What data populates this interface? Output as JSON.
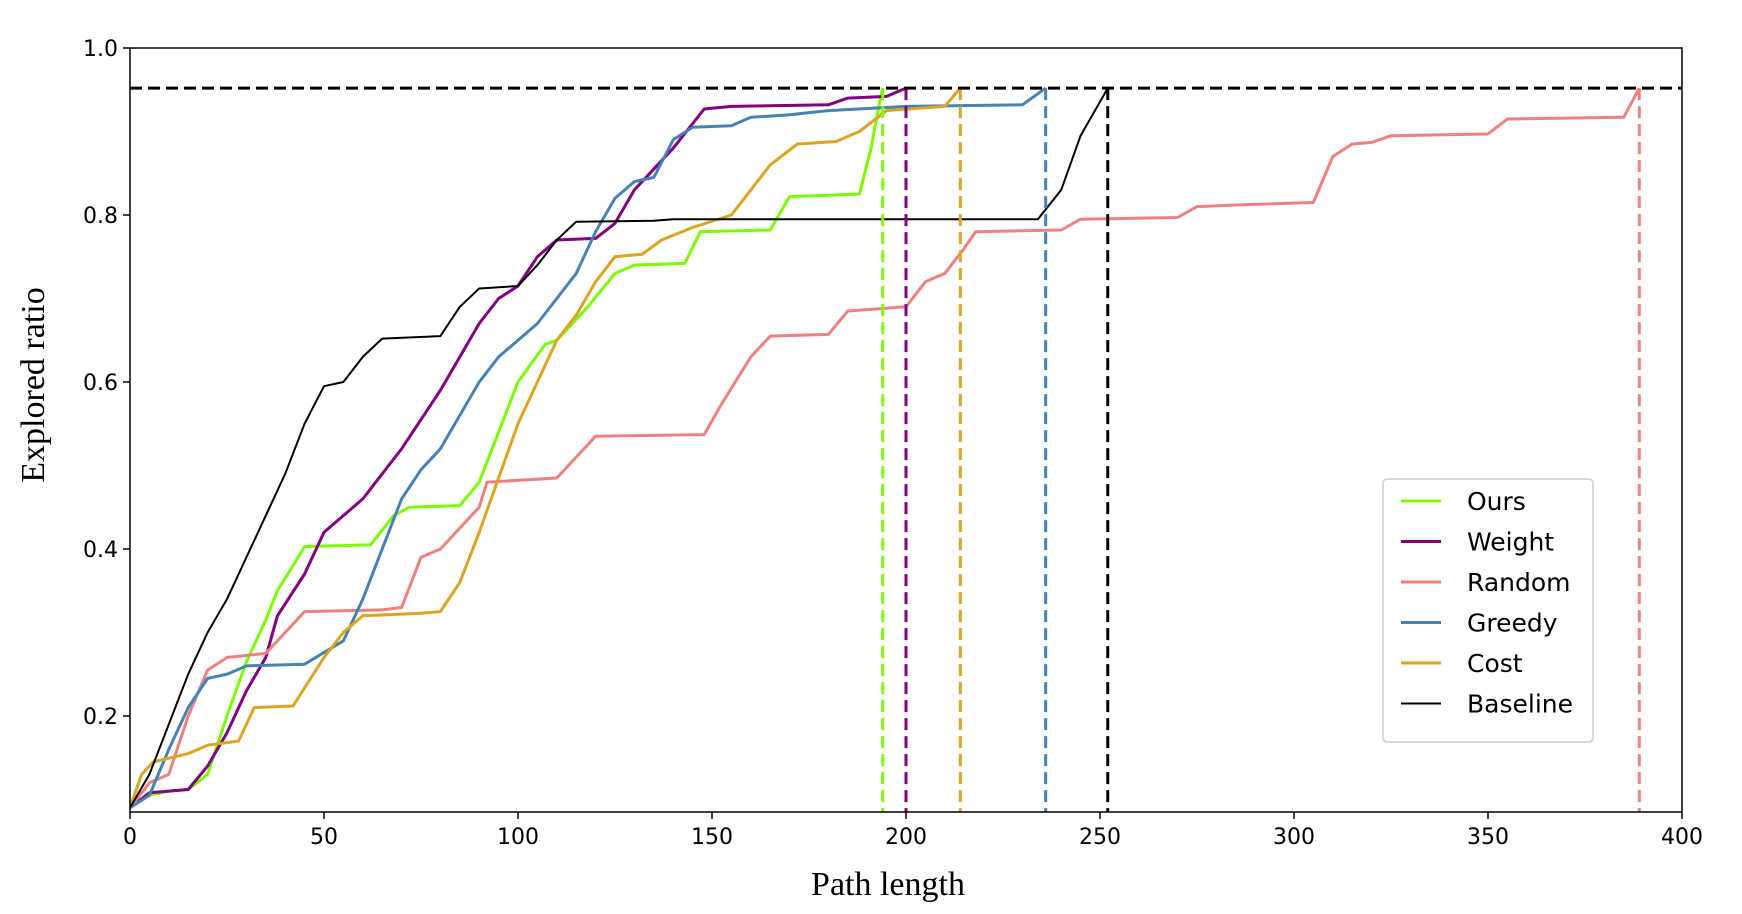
{
  "chart_data": {
    "type": "line",
    "title": "",
    "xlabel": "Path length",
    "ylabel": "Explored ratio",
    "xlim": [
      0,
      400
    ],
    "ylim": [
      0.085,
      1.0
    ],
    "xticks": [
      "0",
      "50",
      "100",
      "150",
      "200",
      "250",
      "300",
      "350",
      "400"
    ],
    "yticks": [
      "0.2",
      "0.4",
      "0.6",
      "0.8",
      "1.0"
    ],
    "xtick_values": [
      0,
      50,
      100,
      150,
      200,
      250,
      300,
      350,
      400
    ],
    "ytick_values": [
      0.2,
      0.4,
      0.6,
      0.8,
      1.0
    ],
    "grid": false,
    "legend_position": "center-right",
    "target_ratio": 0.952,
    "target_line_color": "#000000",
    "series": [
      {
        "name": "Ours",
        "color": "#7CFC00",
        "end_x": 194,
        "points": [
          [
            0,
            0.09
          ],
          [
            5,
            0.105
          ],
          [
            10,
            0.11
          ],
          [
            15,
            0.112
          ],
          [
            20,
            0.13
          ],
          [
            25,
            0.2
          ],
          [
            30,
            0.265
          ],
          [
            35,
            0.315
          ],
          [
            38,
            0.35
          ],
          [
            42,
            0.38
          ],
          [
            45,
            0.403
          ],
          [
            55,
            0.404
          ],
          [
            62,
            0.405
          ],
          [
            68,
            0.44
          ],
          [
            72,
            0.45
          ],
          [
            85,
            0.452
          ],
          [
            90,
            0.48
          ],
          [
            100,
            0.6
          ],
          [
            107,
            0.645
          ],
          [
            110,
            0.65
          ],
          [
            118,
            0.69
          ],
          [
            125,
            0.73
          ],
          [
            130,
            0.74
          ],
          [
            143,
            0.742
          ],
          [
            147,
            0.78
          ],
          [
            165,
            0.782
          ],
          [
            170,
            0.822
          ],
          [
            188,
            0.825
          ],
          [
            191,
            0.88
          ],
          [
            193,
            0.93
          ],
          [
            194,
            0.952
          ]
        ]
      },
      {
        "name": "Weight",
        "color": "#800080",
        "end_x": 200,
        "points": [
          [
            0,
            0.09
          ],
          [
            5,
            0.108
          ],
          [
            10,
            0.11
          ],
          [
            15,
            0.112
          ],
          [
            20,
            0.14
          ],
          [
            25,
            0.18
          ],
          [
            30,
            0.23
          ],
          [
            35,
            0.27
          ],
          [
            38,
            0.32
          ],
          [
            45,
            0.37
          ],
          [
            50,
            0.42
          ],
          [
            60,
            0.46
          ],
          [
            70,
            0.52
          ],
          [
            80,
            0.59
          ],
          [
            90,
            0.67
          ],
          [
            95,
            0.7
          ],
          [
            100,
            0.715
          ],
          [
            105,
            0.75
          ],
          [
            110,
            0.77
          ],
          [
            120,
            0.772
          ],
          [
            125,
            0.79
          ],
          [
            130,
            0.83
          ],
          [
            140,
            0.88
          ],
          [
            148,
            0.927
          ],
          [
            155,
            0.93
          ],
          [
            180,
            0.932
          ],
          [
            185,
            0.94
          ],
          [
            195,
            0.942
          ],
          [
            200,
            0.952
          ]
        ]
      },
      {
        "name": "Random",
        "color": "#F08080",
        "end_x": 389,
        "points": [
          [
            0,
            0.09
          ],
          [
            5,
            0.12
          ],
          [
            10,
            0.13
          ],
          [
            15,
            0.2
          ],
          [
            20,
            0.255
          ],
          [
            25,
            0.27
          ],
          [
            35,
            0.275
          ],
          [
            40,
            0.3
          ],
          [
            45,
            0.325
          ],
          [
            65,
            0.327
          ],
          [
            70,
            0.33
          ],
          [
            75,
            0.39
          ],
          [
            80,
            0.4
          ],
          [
            90,
            0.45
          ],
          [
            92,
            0.48
          ],
          [
            110,
            0.485
          ],
          [
            115,
            0.51
          ],
          [
            120,
            0.535
          ],
          [
            148,
            0.537
          ],
          [
            152,
            0.57
          ],
          [
            160,
            0.63
          ],
          [
            165,
            0.655
          ],
          [
            180,
            0.657
          ],
          [
            185,
            0.685
          ],
          [
            200,
            0.69
          ],
          [
            205,
            0.72
          ],
          [
            210,
            0.73
          ],
          [
            215,
            0.76
          ],
          [
            218,
            0.78
          ],
          [
            240,
            0.782
          ],
          [
            245,
            0.795
          ],
          [
            270,
            0.797
          ],
          [
            275,
            0.81
          ],
          [
            285,
            0.812
          ],
          [
            305,
            0.815
          ],
          [
            310,
            0.87
          ],
          [
            315,
            0.885
          ],
          [
            320,
            0.887
          ],
          [
            325,
            0.895
          ],
          [
            350,
            0.897
          ],
          [
            355,
            0.915
          ],
          [
            385,
            0.917
          ],
          [
            389,
            0.952
          ]
        ]
      },
      {
        "name": "Greedy",
        "color": "#4682B4",
        "end_x": 236,
        "points": [
          [
            0,
            0.09
          ],
          [
            5,
            0.105
          ],
          [
            10,
            0.16
          ],
          [
            15,
            0.21
          ],
          [
            20,
            0.245
          ],
          [
            25,
            0.25
          ],
          [
            30,
            0.26
          ],
          [
            45,
            0.262
          ],
          [
            55,
            0.29
          ],
          [
            60,
            0.34
          ],
          [
            65,
            0.4
          ],
          [
            70,
            0.46
          ],
          [
            75,
            0.495
          ],
          [
            80,
            0.52
          ],
          [
            85,
            0.56
          ],
          [
            90,
            0.6
          ],
          [
            95,
            0.63
          ],
          [
            100,
            0.65
          ],
          [
            105,
            0.67
          ],
          [
            110,
            0.7
          ],
          [
            115,
            0.73
          ],
          [
            120,
            0.78
          ],
          [
            125,
            0.82
          ],
          [
            130,
            0.84
          ],
          [
            135,
            0.845
          ],
          [
            140,
            0.89
          ],
          [
            145,
            0.905
          ],
          [
            155,
            0.907
          ],
          [
            160,
            0.917
          ],
          [
            170,
            0.92
          ],
          [
            180,
            0.925
          ],
          [
            200,
            0.93
          ],
          [
            230,
            0.932
          ],
          [
            236,
            0.952
          ]
        ]
      },
      {
        "name": "Cost",
        "color": "#DAA520",
        "end_x": 214,
        "points": [
          [
            0,
            0.09
          ],
          [
            3,
            0.13
          ],
          [
            6,
            0.145
          ],
          [
            15,
            0.155
          ],
          [
            20,
            0.165
          ],
          [
            28,
            0.17
          ],
          [
            32,
            0.21
          ],
          [
            42,
            0.212
          ],
          [
            50,
            0.27
          ],
          [
            55,
            0.3
          ],
          [
            60,
            0.32
          ],
          [
            75,
            0.323
          ],
          [
            80,
            0.325
          ],
          [
            85,
            0.36
          ],
          [
            90,
            0.42
          ],
          [
            100,
            0.55
          ],
          [
            110,
            0.65
          ],
          [
            115,
            0.68
          ],
          [
            120,
            0.72
          ],
          [
            125,
            0.75
          ],
          [
            132,
            0.753
          ],
          [
            137,
            0.77
          ],
          [
            145,
            0.785
          ],
          [
            155,
            0.8
          ],
          [
            160,
            0.83
          ],
          [
            165,
            0.86
          ],
          [
            172,
            0.885
          ],
          [
            182,
            0.888
          ],
          [
            188,
            0.9
          ],
          [
            195,
            0.925
          ],
          [
            210,
            0.93
          ],
          [
            214,
            0.952
          ]
        ]
      },
      {
        "name": "Baseline",
        "color": "#000000",
        "end_x": 252,
        "points": [
          [
            0,
            0.09
          ],
          [
            5,
            0.13
          ],
          [
            10,
            0.19
          ],
          [
            15,
            0.25
          ],
          [
            20,
            0.3
          ],
          [
            25,
            0.34
          ],
          [
            30,
            0.39
          ],
          [
            35,
            0.44
          ],
          [
            40,
            0.49
          ],
          [
            45,
            0.55
          ],
          [
            50,
            0.595
          ],
          [
            55,
            0.6
          ],
          [
            60,
            0.63
          ],
          [
            65,
            0.652
          ],
          [
            80,
            0.655
          ],
          [
            85,
            0.69
          ],
          [
            90,
            0.712
          ],
          [
            100,
            0.715
          ],
          [
            105,
            0.74
          ],
          [
            110,
            0.77
          ],
          [
            115,
            0.792
          ],
          [
            135,
            0.793
          ],
          [
            140,
            0.795
          ],
          [
            234,
            0.795
          ],
          [
            240,
            0.83
          ],
          [
            245,
            0.895
          ],
          [
            252,
            0.952
          ]
        ]
      }
    ]
  }
}
